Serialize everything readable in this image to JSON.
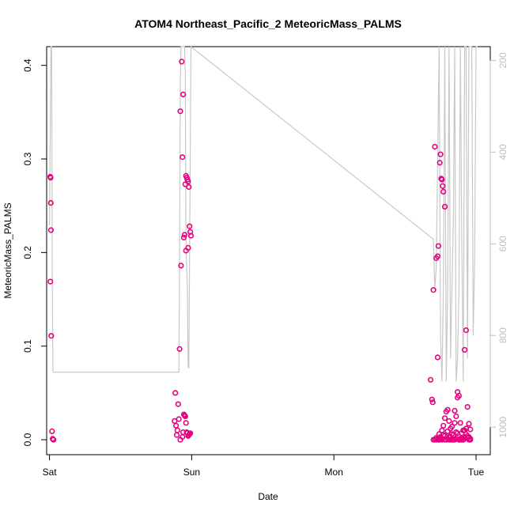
{
  "chart_data": {
    "type": "scatter",
    "title": "ATOM4 Northeast_Pacific_2 MeteoricMass_PALMS",
    "xlabel": "Date",
    "ylabel": "MeteoricMass_PALMS",
    "x_ticks": [
      "Sat",
      "Sun",
      "Mon",
      "Tue"
    ],
    "xlim": [
      -0.02,
      3.1
    ],
    "ylim": [
      -0.016,
      0.42
    ],
    "y_ticks": [
      0.0,
      0.1,
      0.2,
      0.3,
      0.4
    ],
    "y_tick_labels": [
      "0.0",
      "0.1",
      "0.2",
      "0.3",
      "0.4"
    ],
    "y2lim": [
      1060,
      170
    ],
    "y2_ticks": [
      200,
      400,
      600,
      800,
      1000
    ],
    "y2_tick_labels": [
      "200",
      "400",
      "600",
      "800",
      "1000"
    ],
    "grid": false,
    "colors": {
      "points": "#e6007e",
      "points_light": "#ff44cc",
      "pressure_line": "#c8c8c8",
      "axis": "#000000",
      "right_axis": "#bdbdbd"
    },
    "series": [
      {
        "kind": "points",
        "x": [
          0.005,
          0.008,
          0.009,
          0.01,
          0.006,
          0.012,
          0.018,
          0.022,
          0.028,
          0.88,
          0.91,
          0.905,
          0.885,
          0.89,
          0.895,
          0.9,
          0.92,
          0.935,
          0.94,
          0.945,
          0.95,
          0.955,
          0.96,
          0.965,
          0.97,
          0.975,
          0.98,
          0.985,
          0.99,
          0.915,
          0.925,
          0.93,
          0.94,
          0.92,
          0.935,
          0.96,
          0.965,
          0.97,
          0.975,
          0.955,
          0.98,
          0.985,
          0.99,
          0.95,
          0.995,
          0.945,
          0.96,
          0.975,
          2.7,
          2.7,
          2.71,
          2.72,
          2.73,
          2.74,
          2.75,
          2.745,
          2.755,
          2.76,
          2.765,
          2.77,
          2.78,
          2.68,
          2.69,
          2.695,
          2.71,
          2.72,
          2.735,
          2.73,
          2.74,
          2.75,
          2.76,
          2.77,
          2.78,
          2.79,
          2.8,
          2.81,
          2.82,
          2.83,
          2.84,
          2.85,
          2.86,
          2.87,
          2.88,
          2.89,
          2.9,
          2.91,
          2.92,
          2.93,
          2.94,
          2.95,
          2.96,
          2.72,
          2.74,
          2.76,
          2.78,
          2.8,
          2.82,
          2.84,
          2.86,
          2.88,
          2.9,
          2.92,
          2.94,
          2.96,
          2.73,
          2.75,
          2.77,
          2.79,
          2.81,
          2.83,
          2.85,
          2.87,
          2.89,
          2.91,
          2.93,
          2.95,
          2.74,
          2.78,
          2.82,
          2.86,
          2.9,
          2.94,
          2.76,
          2.8,
          2.84,
          2.88,
          2.92,
          2.96,
          2.85,
          2.87,
          2.89,
          2.91,
          2.83,
          2.81,
          2.93,
          2.95
        ],
        "y": [
          0.281,
          0.28,
          0.253,
          0.224,
          0.169,
          0.111,
          0.009,
          0.001,
          0.0,
          0.02,
          0.022,
          0.038,
          0.05,
          0.015,
          0.005,
          0.01,
          0.0,
          0.003,
          0.008,
          0.027,
          0.026,
          0.025,
          0.018,
          0.008,
          0.007,
          0.004,
          0.005,
          0.006,
          0.007,
          0.097,
          0.186,
          0.404,
          0.369,
          0.351,
          0.302,
          0.282,
          0.28,
          0.278,
          0.276,
          0.273,
          0.27,
          0.228,
          0.222,
          0.219,
          0.218,
          0.216,
          0.202,
          0.205,
          0.16,
          0.0,
          0.313,
          0.194,
          0.196,
          0.0,
          0.305,
          0.296,
          0.279,
          0.278,
          0.271,
          0.265,
          0.249,
          0.064,
          0.043,
          0.04,
          0.0,
          0.0,
          0.207,
          0.088,
          0.0,
          0.003,
          0.01,
          0.015,
          0.023,
          0.03,
          0.032,
          0.0,
          0.012,
          0.0,
          0.005,
          0.018,
          0.025,
          0.051,
          0.047,
          0.0,
          0.007,
          0.0,
          0.096,
          0.117,
          0.035,
          0.017,
          0.011,
          0.002,
          0.006,
          0.001,
          0.004,
          0.009,
          0.003,
          0.0,
          0.008,
          0.0,
          0.002,
          0.01,
          0.004,
          0.0,
          0.001,
          0.002,
          0.005,
          0.0,
          0.003,
          0.006,
          0.0,
          0.007,
          0.001,
          0.0,
          0.012,
          0.003,
          0.0,
          0.0,
          0.0,
          0.001,
          0.0,
          0.002,
          0.0,
          0.001,
          0.0,
          0.0,
          0.003,
          0.001,
          0.031,
          0.045,
          0.018,
          0.01,
          0.014,
          0.02,
          0.006,
          0.0
        ]
      },
      {
        "kind": "pressure",
        "x": [
          0.0,
          0.01,
          0.015,
          0.02,
          0.024,
          0.026,
          0.03,
          0.9,
          0.91,
          0.915,
          0.92,
          0.925,
          0.93,
          0.935,
          0.94,
          0.945,
          0.95,
          0.955,
          0.96,
          0.97,
          0.975,
          0.98,
          0.995,
          2.7,
          2.71,
          2.72,
          2.73,
          2.74,
          2.75,
          2.76,
          2.77,
          2.78,
          2.79,
          2.8,
          2.81,
          2.82,
          2.83,
          2.84,
          2.85,
          2.86,
          2.87,
          2.88,
          2.89,
          2.9,
          2.91,
          2.92,
          2.93,
          2.94,
          2.95,
          2.96,
          2.97,
          2.98,
          2.99,
          3.0,
          3.01
        ],
        "p": [
          560,
          170,
          170,
          700,
          870,
          880,
          880,
          880,
          880,
          640,
          250,
          170,
          170,
          170,
          170,
          170,
          170,
          230,
          600,
          700,
          870,
          870,
          170,
          590,
          700,
          650,
          420,
          170,
          800,
          900,
          700,
          170,
          900,
          700,
          170,
          850,
          700,
          550,
          170,
          900,
          850,
          700,
          170,
          600,
          900,
          170,
          170,
          850,
          170,
          170,
          170,
          800,
          640,
          170,
          170
        ]
      }
    ]
  }
}
